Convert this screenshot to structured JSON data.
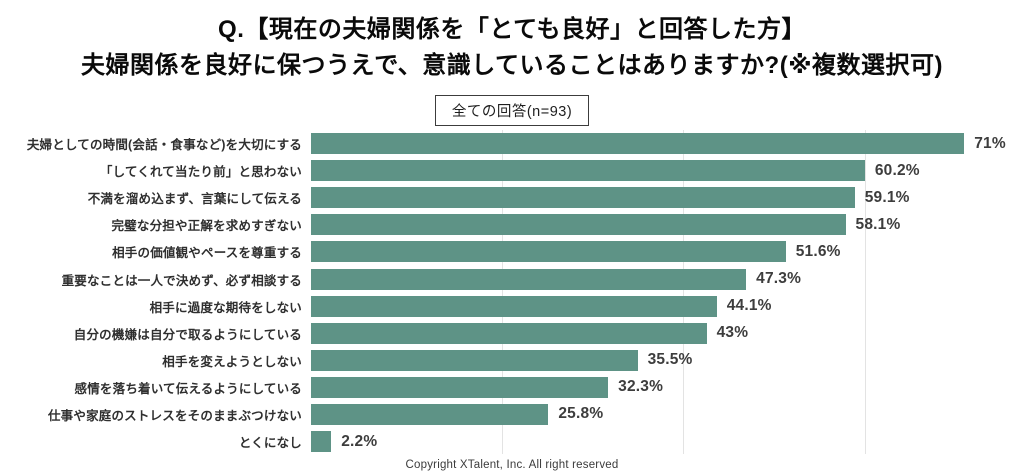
{
  "page": {
    "title_line1": "Q.【現在の夫婦関係を「とても良好」と回答した方】",
    "title_line2": "夫婦関係を良好に保つうえで、意識していることはありますか?(※複数選択可)",
    "badge_label": "全ての回答(n=93)",
    "footer_text": "Copyright XTalent, Inc. All right reserved"
  },
  "colors": {
    "bar": "#5E9386",
    "gridline": "#E3E3E3",
    "category_label": "#2F2F2F",
    "value_label": "#3D3D3D"
  },
  "chart_data": {
    "type": "bar",
    "orientation": "horizontal",
    "title": "全ての回答(n=93)",
    "categories": [
      "夫婦としての時間(会話・食事など)を大切にする",
      "「してくれて当たり前」と思わない",
      "不満を溜め込まず、言葉にして伝える",
      "完璧な分担や正解を求めすぎない",
      "相手の価値観やペースを尊重する",
      "重要なことは一人で決めず、必ず相談する",
      "相手に過度な期待をしない",
      "自分の機嫌は自分で取るようにしている",
      "相手を変えようとしない",
      "感情を落ち着いて伝えるようにしている",
      "仕事や家庭のストレスをそのままぶつけない",
      "とくになし"
    ],
    "values": [
      71,
      60.2,
      59.1,
      58.1,
      51.6,
      47.3,
      44.1,
      43,
      35.5,
      32.3,
      25.8,
      2.2
    ],
    "value_labels": [
      "71%",
      "60.2%",
      "59.1%",
      "58.1%",
      "51.6%",
      "47.3%",
      "44.1%",
      "43%",
      "35.5%",
      "32.3%",
      "25.8%",
      "2.2%"
    ],
    "xlabel": "",
    "ylabel": "",
    "xlim": [
      0,
      77.5
    ],
    "ticks": [
      20,
      40,
      60
    ],
    "grid": true,
    "legend": false
  }
}
